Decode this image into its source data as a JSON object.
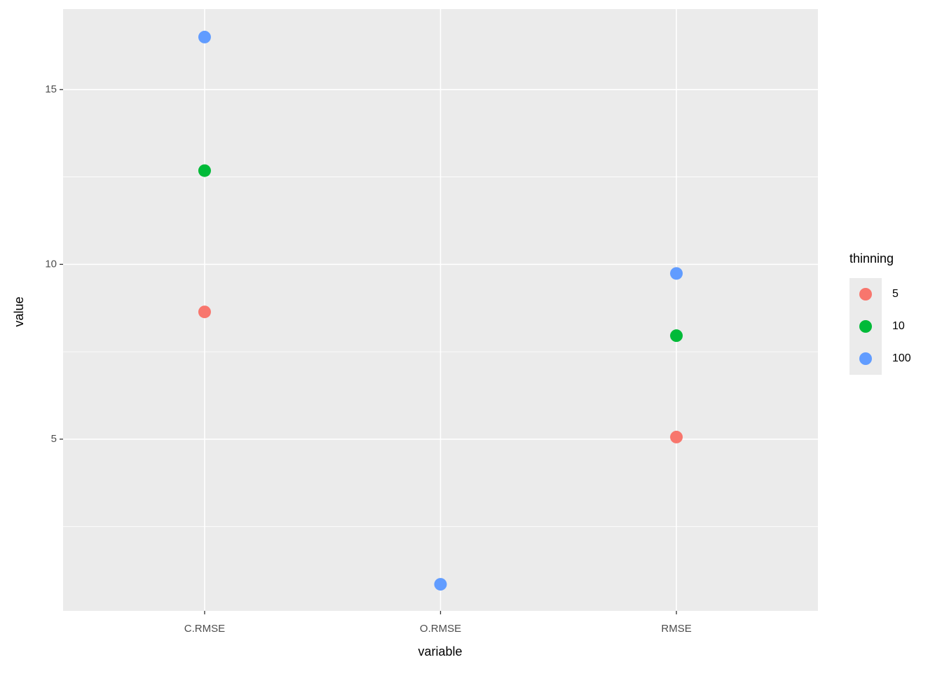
{
  "chart_data": {
    "type": "scatter",
    "x_label": "variable",
    "y_label": "value",
    "categories": [
      "C.RMSE",
      "O.RMSE",
      "RMSE"
    ],
    "legend_title": "thinning",
    "legend_position": "right",
    "series": [
      {
        "name": "5",
        "color": "#F8766D",
        "values": [
          8.64,
          null,
          5.06
        ]
      },
      {
        "name": "10",
        "color": "#00BA38",
        "values": [
          12.68,
          null,
          7.96
        ]
      },
      {
        "name": "100",
        "color": "#619CFF",
        "values": [
          16.5,
          0.85,
          9.74
        ]
      }
    ],
    "ylim": [
      0.09,
      17.3
    ],
    "yticks": [
      5,
      10,
      15
    ],
    "y_minor_ticks": [
      2.5,
      7.5,
      12.5
    ],
    "grid": true
  }
}
